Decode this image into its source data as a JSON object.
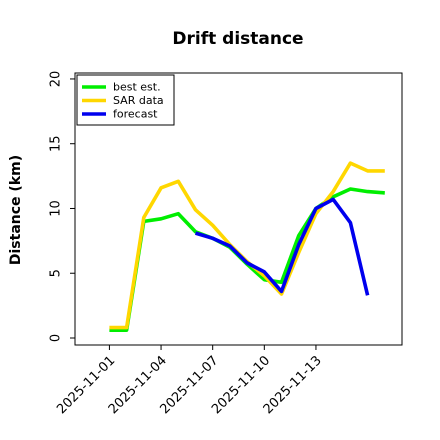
{
  "chart_data": {
    "type": "line",
    "title": "Drift distance",
    "xlabel": "",
    "ylabel": "Distance (km)",
    "ylim": [
      0,
      21
    ],
    "yticks": [
      0,
      5,
      10,
      15,
      20
    ],
    "yticklabels": [
      "0",
      "5",
      "10",
      "15",
      "20"
    ],
    "xticks": [
      "2025-11-01",
      "2025-11-04",
      "2025-11-07",
      "2025-11-10",
      "2025-11-13"
    ],
    "xlim": [
      "2025-10-30",
      "2025-11-18"
    ],
    "grid": false,
    "legend": "top-left",
    "series": [
      {
        "name": "best est.",
        "color": "#00ee00",
        "x": [
          "2025-11-01",
          "2025-11-02",
          "2025-11-03",
          "2025-11-04",
          "2025-11-05",
          "2025-11-06",
          "2025-11-07",
          "2025-11-08",
          "2025-11-09",
          "2025-11-10",
          "2025-11-11",
          "2025-11-12",
          "2025-11-13",
          "2025-11-14",
          "2025-11-15",
          "2025-11-16",
          "2025-11-17"
        ],
        "values": [
          0.6,
          0.6,
          9.0,
          9.2,
          9.6,
          8.2,
          7.7,
          7.0,
          5.7,
          4.5,
          4.3,
          7.9,
          10.0,
          10.9,
          11.5,
          11.3,
          11.2
        ]
      },
      {
        "name": "SAR data",
        "color": "#ffd700",
        "x": [
          "2025-11-01",
          "2025-11-02",
          "2025-11-03",
          "2025-11-04",
          "2025-11-05",
          "2025-11-06",
          "2025-11-07",
          "2025-11-08",
          "2025-11-09",
          "2025-11-10",
          "2025-11-11",
          "2025-11-12",
          "2025-11-13",
          "2025-11-14",
          "2025-11-15",
          "2025-11-16",
          "2025-11-17"
        ],
        "values": [
          0.8,
          0.8,
          9.3,
          11.6,
          12.1,
          9.9,
          8.7,
          7.2,
          5.9,
          4.8,
          3.4,
          6.6,
          9.6,
          11.3,
          13.5,
          12.9,
          12.9
        ]
      },
      {
        "name": "forecast",
        "color": "#0000ee",
        "x": [
          "2025-11-06",
          "2025-11-07",
          "2025-11-08",
          "2025-11-09",
          "2025-11-10",
          "2025-11-11",
          "2025-11-12",
          "2025-11-13",
          "2025-11-14",
          "2025-11-15",
          "2025-11-16"
        ],
        "values": [
          8.1,
          7.7,
          7.1,
          5.8,
          5.1,
          3.6,
          7.2,
          10.0,
          10.7,
          8.9,
          3.3
        ]
      }
    ]
  }
}
